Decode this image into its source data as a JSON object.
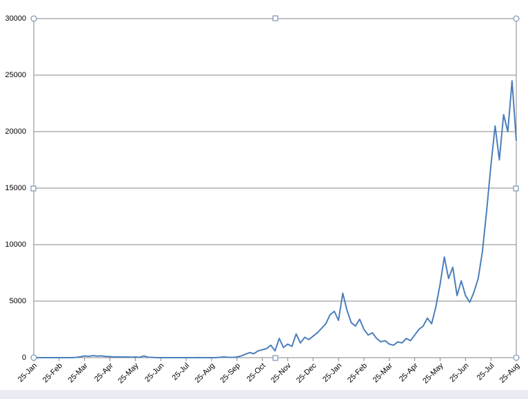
{
  "chart_data": {
    "type": "line",
    "categories": [
      "25-Jan",
      null,
      null,
      null,
      null,
      null,
      "25-Feb",
      null,
      null,
      null,
      null,
      null,
      "25-Mar",
      null,
      null,
      null,
      null,
      null,
      "25-Apr",
      null,
      null,
      null,
      null,
      null,
      "25-May",
      null,
      null,
      null,
      null,
      null,
      "25-Jun",
      null,
      null,
      null,
      null,
      null,
      "25-Jul",
      null,
      null,
      null,
      null,
      null,
      "25-Aug",
      null,
      null,
      null,
      null,
      null,
      "25-Sep",
      null,
      null,
      null,
      null,
      null,
      "25-Oct",
      null,
      null,
      null,
      null,
      null,
      "25-Nov",
      null,
      null,
      null,
      null,
      null,
      "25-Dec",
      null,
      null,
      null,
      null,
      null,
      "25-Jan",
      null,
      null,
      null,
      null,
      null,
      "25-Feb",
      null,
      null,
      null,
      null,
      null,
      "25-Mar",
      null,
      null,
      null,
      null,
      null,
      "25-Apr",
      null,
      null,
      null,
      null,
      null,
      "25-May",
      null,
      null,
      null,
      null,
      null,
      "25-Jun",
      null,
      null,
      null,
      null,
      null,
      "25-Jul",
      null,
      null,
      null,
      null,
      null,
      "25-Aug"
    ],
    "values": [
      0,
      0,
      0,
      0,
      0,
      0,
      0,
      0,
      0,
      0,
      20,
      80,
      150,
      120,
      180,
      140,
      160,
      110,
      90,
      60,
      80,
      50,
      70,
      40,
      60,
      30,
      150,
      40,
      20,
      0,
      0,
      0,
      0,
      0,
      0,
      0,
      0,
      0,
      0,
      10,
      0,
      0,
      0,
      0,
      40,
      60,
      30,
      20,
      60,
      150,
      300,
      450,
      350,
      600,
      700,
      800,
      1100,
      600,
      1700,
      900,
      1200,
      1000,
      2100,
      1300,
      1800,
      1600,
      1900,
      2200,
      2600,
      3000,
      3800,
      4100,
      3300,
      5700,
      4200,
      3100,
      2800,
      3400,
      2500,
      2000,
      2200,
      1700,
      1400,
      1500,
      1200,
      1100,
      1400,
      1300,
      1700,
      1500,
      2000,
      2500,
      2800,
      3500,
      3000,
      4500,
      6500,
      8900,
      7000,
      8000,
      5500,
      6800,
      5500,
      4900,
      5800,
      7000,
      9400,
      13000,
      17000,
      20500,
      17500,
      21500,
      20000,
      24500,
      19200
    ],
    "color": "#4a7ebb",
    "ylim": [
      0,
      30000
    ],
    "yticks": [
      0,
      5000,
      10000,
      15000,
      20000,
      25000,
      30000
    ],
    "grid": true
  }
}
